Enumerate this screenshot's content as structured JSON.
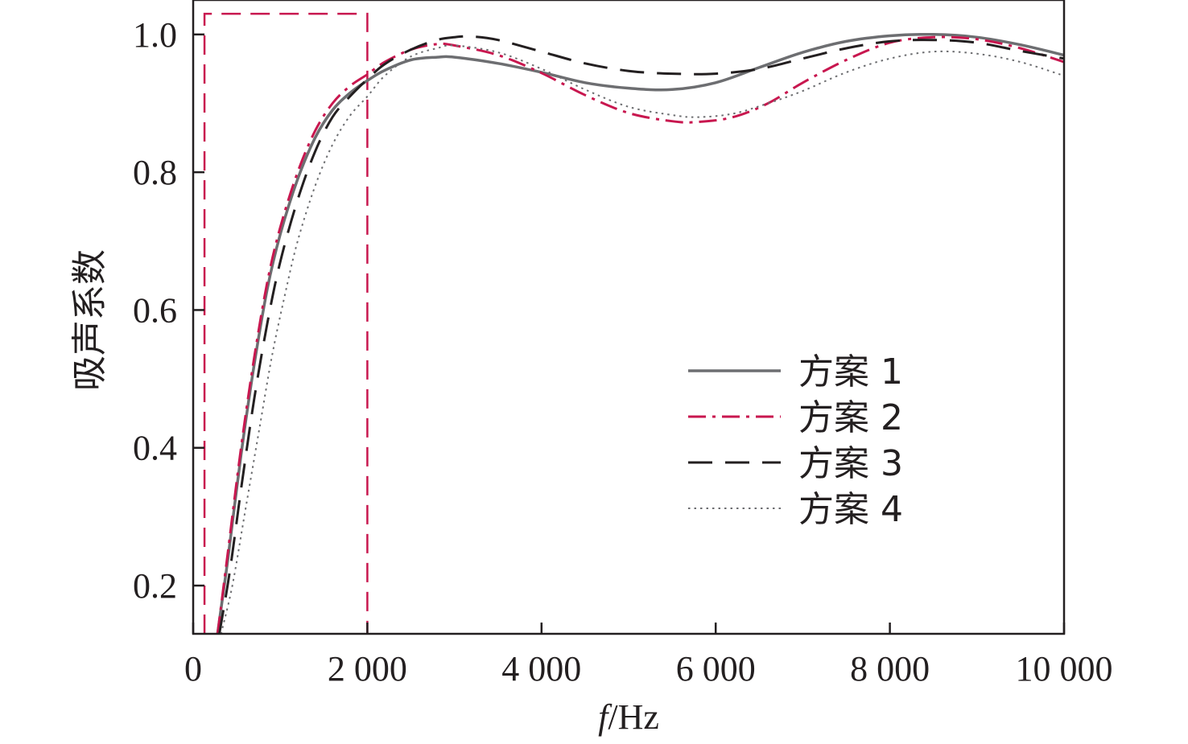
{
  "chart_data": {
    "type": "line",
    "xlabel_italic": "f",
    "xlabel_rest": "/Hz",
    "ylabel": "吸声系数",
    "xlim": [
      0,
      10000
    ],
    "ylim": [
      0.13,
      1.05
    ],
    "grid": false,
    "legend_position": "center-right",
    "x_ticks": [
      {
        "value": 0,
        "label": "0"
      },
      {
        "value": 2000,
        "label": "2 000"
      },
      {
        "value": 4000,
        "label": "4 000"
      },
      {
        "value": 6000,
        "label": "6 000"
      },
      {
        "value": 8000,
        "label": "8 000"
      },
      {
        "value": 10000,
        "label": "10 000"
      }
    ],
    "y_ticks": [
      {
        "value": 0.2,
        "label": "0.2"
      },
      {
        "value": 0.4,
        "label": "0.4"
      },
      {
        "value": 0.6,
        "label": "0.6"
      },
      {
        "value": 0.8,
        "label": "0.8"
      },
      {
        "value": 1.0,
        "label": "1.0"
      }
    ],
    "highlight_region": {
      "x_start": 130,
      "x_end": 2000,
      "y_top": 1.03,
      "color": "#c8174f"
    },
    "series": [
      {
        "name": "方案 1",
        "style": "solid",
        "color": "#6d6e71",
        "x": [
          280,
          400,
          550,
          700,
          850,
          1000,
          1200,
          1400,
          1600,
          1800,
          2000,
          2200,
          2500,
          2800,
          3000,
          3500,
          4000,
          4500,
          5000,
          5500,
          6000,
          6500,
          7000,
          7500,
          8000,
          8500,
          9000,
          9500,
          10000
        ],
        "y": [
          0.13,
          0.24,
          0.39,
          0.52,
          0.63,
          0.71,
          0.79,
          0.85,
          0.89,
          0.915,
          0.933,
          0.948,
          0.963,
          0.967,
          0.967,
          0.958,
          0.945,
          0.93,
          0.922,
          0.92,
          0.93,
          0.952,
          0.974,
          0.99,
          0.998,
          1.0,
          0.996,
          0.985,
          0.97
        ]
      },
      {
        "name": "方案 2",
        "style": "dashdot",
        "color": "#c8174f",
        "x": [
          280,
          400,
          550,
          700,
          850,
          1000,
          1200,
          1400,
          1600,
          1800,
          2000,
          2200,
          2500,
          2800,
          3000,
          3500,
          4000,
          4500,
          5000,
          5500,
          5800,
          6200,
          6600,
          7000,
          7500,
          8000,
          8500,
          9000,
          9500,
          10000
        ],
        "y": [
          0.13,
          0.25,
          0.4,
          0.53,
          0.64,
          0.72,
          0.8,
          0.86,
          0.9,
          0.925,
          0.942,
          0.96,
          0.978,
          0.986,
          0.984,
          0.97,
          0.944,
          0.912,
          0.886,
          0.874,
          0.873,
          0.88,
          0.9,
          0.93,
          0.963,
          0.988,
          0.996,
          0.993,
          0.98,
          0.96
        ]
      },
      {
        "name": "方案 3",
        "style": "dashed",
        "color": "#231f20",
        "x": [
          300,
          420,
          550,
          700,
          850,
          1000,
          1200,
          1400,
          1600,
          1800,
          2000,
          2200,
          2500,
          2800,
          3000,
          3200,
          3500,
          4000,
          4500,
          5000,
          5500,
          6000,
          6500,
          7000,
          7500,
          8000,
          8500,
          9000,
          9500,
          10000
        ],
        "y": [
          0.13,
          0.22,
          0.34,
          0.47,
          0.58,
          0.67,
          0.76,
          0.83,
          0.88,
          0.91,
          0.935,
          0.957,
          0.978,
          0.992,
          0.996,
          0.997,
          0.992,
          0.975,
          0.958,
          0.947,
          0.943,
          0.943,
          0.95,
          0.965,
          0.98,
          0.99,
          0.992,
          0.988,
          0.976,
          0.965
        ]
      },
      {
        "name": "方案 4",
        "style": "dotted",
        "color": "#6d6e71",
        "x": [
          320,
          450,
          600,
          750,
          900,
          1050,
          1200,
          1400,
          1600,
          1800,
          2000,
          2200,
          2500,
          2800,
          3000,
          3500,
          4000,
          4500,
          5000,
          5500,
          5800,
          6200,
          6600,
          7000,
          7500,
          8000,
          8500,
          9000,
          9500,
          10000
        ],
        "y": [
          0.13,
          0.2,
          0.31,
          0.42,
          0.53,
          0.62,
          0.7,
          0.78,
          0.84,
          0.882,
          0.91,
          0.94,
          0.968,
          0.98,
          0.984,
          0.974,
          0.95,
          0.92,
          0.895,
          0.883,
          0.88,
          0.885,
          0.9,
          0.918,
          0.945,
          0.965,
          0.975,
          0.972,
          0.96,
          0.94
        ]
      }
    ]
  }
}
